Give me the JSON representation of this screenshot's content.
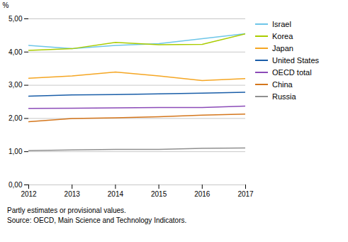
{
  "chart_data": {
    "type": "line",
    "x": [
      2012,
      2013,
      2014,
      2015,
      2016,
      2017
    ],
    "series": [
      {
        "name": "Israel",
        "color": "#6EC6E8",
        "values": [
          4.2,
          4.1,
          4.2,
          4.25,
          4.4,
          4.55
        ]
      },
      {
        "name": "Korea",
        "color": "#AACC00",
        "values": [
          4.05,
          4.1,
          4.29,
          4.22,
          4.23,
          4.55
        ]
      },
      {
        "name": "Japan",
        "color": "#F5A623",
        "values": [
          3.21,
          3.28,
          3.4,
          3.28,
          3.14,
          3.2
        ]
      },
      {
        "name": "United States",
        "color": "#1A5EA8",
        "values": [
          2.67,
          2.71,
          2.72,
          2.74,
          2.76,
          2.79
        ]
      },
      {
        "name": "OECD total",
        "color": "#8B4BB8",
        "values": [
          2.3,
          2.31,
          2.32,
          2.33,
          2.33,
          2.37
        ]
      },
      {
        "name": "China",
        "color": "#D4761C",
        "values": [
          1.9,
          2.0,
          2.02,
          2.05,
          2.1,
          2.13
        ]
      },
      {
        "name": "Russia",
        "color": "#909090",
        "values": [
          1.03,
          1.05,
          1.07,
          1.07,
          1.1,
          1.11
        ]
      }
    ],
    "ylabel": "%",
    "xlim": [
      2012,
      2017
    ],
    "xticks": [
      2012,
      2013,
      2014,
      2015,
      2016,
      2017
    ],
    "ylim": [
      0,
      5.0
    ],
    "yticks": [
      {
        "value": 0.0,
        "label": "0,00"
      },
      {
        "value": 1.0,
        "label": "1,00"
      },
      {
        "value": 2.0,
        "label": "2,00"
      },
      {
        "value": 3.0,
        "label": "3,00"
      },
      {
        "value": 4.0,
        "label": "4,00"
      },
      {
        "value": 5.0,
        "label": "5,00"
      }
    ],
    "grid": "y",
    "legend": "right",
    "annotations": [
      "Partly estimates or provisional values.",
      "Source: OECD, Main Science and Technology Indicators."
    ]
  }
}
